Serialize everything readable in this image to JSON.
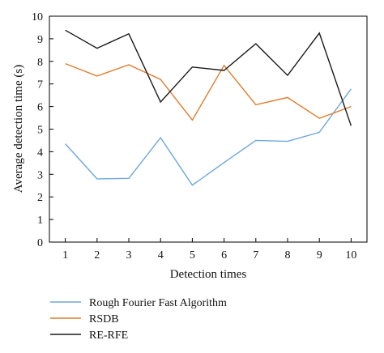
{
  "chart_data": {
    "type": "line",
    "xlabel": "Detection times",
    "ylabel": "Average detection time (s)",
    "x": [
      1,
      2,
      3,
      4,
      5,
      6,
      7,
      8,
      9,
      10
    ],
    "xlim": [
      0.5,
      10.5
    ],
    "ylim": [
      0,
      10
    ],
    "yticks": [
      0,
      1,
      2,
      3,
      4,
      5,
      6,
      7,
      8,
      9,
      10
    ],
    "grid": false,
    "legend_position": "bottom-left",
    "series": [
      {
        "name": "Rough Fourier Fast Algorithm",
        "color": "#6fa8dc",
        "values": [
          4.35,
          2.8,
          2.82,
          4.62,
          2.52,
          3.52,
          4.5,
          4.46,
          4.86,
          6.78
        ]
      },
      {
        "name": "RSDB",
        "color": "#e07b2a",
        "values": [
          7.9,
          7.35,
          7.85,
          7.2,
          5.4,
          7.82,
          6.08,
          6.4,
          5.48,
          6.0
        ]
      },
      {
        "name": "RE-RFE",
        "color": "#1a1a1a",
        "values": [
          9.38,
          8.58,
          9.22,
          6.2,
          7.75,
          7.6,
          8.78,
          7.38,
          9.25,
          5.15
        ]
      }
    ]
  }
}
